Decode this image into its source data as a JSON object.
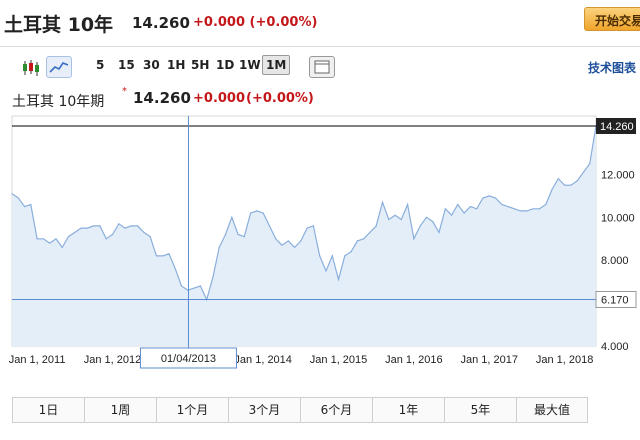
{
  "header": {
    "title": "土耳其 10年",
    "price": "14.260",
    "change": "+0.000 (+0.00%)",
    "trade_button": "开始交易"
  },
  "toolbar": {
    "icons": [
      "candlestick-icon",
      "line-chart-icon",
      "layout-icon"
    ],
    "intervals": [
      "5",
      "15",
      "30",
      "1H",
      "5H",
      "1D",
      "1W",
      "1M"
    ],
    "active_interval": "1M",
    "tech_chart_link": "技术图表"
  },
  "chart_header": {
    "name": "土耳其 10年期",
    "marker": "*",
    "price": "14.260",
    "change": "+0.000",
    "change_pct": "(+0.00%)"
  },
  "chart_data": {
    "type": "area",
    "x": [
      "2010-09",
      "2010-10",
      "2010-11",
      "2010-12",
      "2011-01",
      "2011-02",
      "2011-03",
      "2011-04",
      "2011-05",
      "2011-06",
      "2011-07",
      "2011-08",
      "2011-09",
      "2011-10",
      "2011-11",
      "2011-12",
      "2012-01",
      "2012-02",
      "2012-03",
      "2012-04",
      "2012-05",
      "2012-06",
      "2012-07",
      "2012-08",
      "2012-09",
      "2012-10",
      "2012-11",
      "2012-12",
      "2013-01",
      "2013-02",
      "2013-03",
      "2013-04",
      "2013-05",
      "2013-06",
      "2013-07",
      "2013-08",
      "2013-09",
      "2013-10",
      "2013-11",
      "2013-12",
      "2014-01",
      "2014-02",
      "2014-03",
      "2014-04",
      "2014-05",
      "2014-06",
      "2014-07",
      "2014-08",
      "2014-09",
      "2014-10",
      "2014-11",
      "2014-12",
      "2015-01",
      "2015-02",
      "2015-03",
      "2015-04",
      "2015-05",
      "2015-06",
      "2015-07",
      "2015-08",
      "2015-09",
      "2015-10",
      "2015-11",
      "2015-12",
      "2016-01",
      "2016-02",
      "2016-03",
      "2016-04",
      "2016-05",
      "2016-06",
      "2016-07",
      "2016-08",
      "2016-09",
      "2016-10",
      "2016-11",
      "2016-12",
      "2017-01",
      "2017-02",
      "2017-03",
      "2017-04",
      "2017-05",
      "2017-06",
      "2017-07",
      "2017-08",
      "2017-09",
      "2017-10",
      "2017-11",
      "2017-12",
      "2018-01",
      "2018-02",
      "2018-03",
      "2018-04",
      "2018-05",
      "2018-06"
    ],
    "values": [
      11.1,
      10.9,
      10.5,
      10.6,
      9.0,
      9.0,
      8.8,
      9.0,
      8.6,
      9.1,
      9.3,
      9.5,
      9.5,
      9.6,
      9.6,
      9.0,
      9.2,
      9.7,
      9.5,
      9.6,
      9.6,
      9.3,
      9.1,
      8.2,
      8.2,
      8.3,
      7.6,
      6.8,
      6.6,
      6.7,
      6.8,
      6.17,
      7.2,
      8.6,
      9.2,
      10.0,
      9.2,
      9.1,
      10.2,
      10.3,
      10.2,
      9.6,
      9.0,
      8.7,
      8.9,
      8.6,
      8.9,
      9.5,
      9.6,
      8.2,
      7.5,
      8.2,
      7.1,
      8.2,
      8.4,
      8.9,
      9.0,
      9.3,
      9.6,
      10.7,
      9.9,
      10.1,
      9.9,
      10.6,
      9.0,
      9.6,
      10.0,
      9.8,
      9.3,
      10.4,
      10.1,
      10.6,
      10.2,
      10.5,
      10.4,
      10.9,
      11.0,
      10.9,
      10.6,
      10.5,
      10.4,
      10.3,
      10.3,
      10.4,
      10.4,
      10.6,
      11.3,
      11.8,
      11.5,
      11.5,
      11.7,
      12.1,
      12.5,
      14.26
    ],
    "y_ticks": [
      "12.000",
      "10.000",
      "8.000",
      "6.000",
      "4.000"
    ],
    "x_tick_labels": [
      "Jan 1, 2011",
      "Jan 1, 2012",
      "Jan 1, 2014",
      "Jan 1, 2015",
      "Jan 1, 2016",
      "Jan 1, 2017",
      "Jan 1, 2018"
    ],
    "ylim": [
      4,
      14.26
    ],
    "last_value_label": "14.260",
    "crosshair": {
      "date_label": "01/04/2013",
      "value_label": "6.170",
      "value": 6.17
    },
    "colors": {
      "line": "#8aaedc",
      "fill": "#e4eef9",
      "crosshair": "#5a8bd2",
      "last_line": "#000000",
      "badge_bg": "#222222",
      "badge_text": "#ffffff"
    }
  },
  "ranges": [
    "1日",
    "1周",
    "1个月",
    "3个月",
    "6个月",
    "1年",
    "5年",
    "最大值"
  ]
}
